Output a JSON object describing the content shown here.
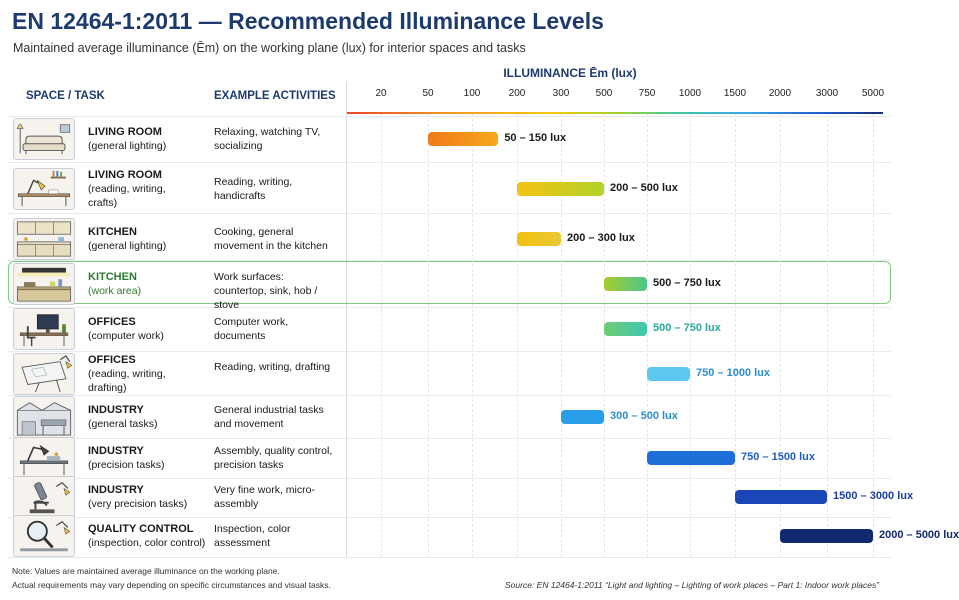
{
  "title": "EN 12464-1:2011 — Recommended Illuminance Levels",
  "subtitle": "Maintained average illuminance (Ēm) on the working plane (lux) for interior spaces and tasks",
  "headers": {
    "space": "SPACE / TASK",
    "activities": "EXAMPLE ACTIVITIES",
    "illuminance": "ILLUMINANCE Ēm (lux)"
  },
  "chart_data": {
    "type": "bar",
    "orientation": "horizontal-range",
    "title": "EN 12464-1:2011 — Recommended Illuminance Levels",
    "xlabel": "ILLUMINANCE Ēm (lux)",
    "x_scale": "log",
    "ticks": [
      20,
      50,
      100,
      200,
      300,
      500,
      750,
      1000,
      1500,
      2000,
      3000,
      5000
    ],
    "tick_labels": [
      "20",
      "50",
      "100",
      "200",
      "300",
      "500",
      "750",
      "1000",
      "1500",
      "2000",
      "3000",
      "5000"
    ],
    "rows": [
      {
        "space": "LIVING ROOM",
        "sub": [
          "(general lighting)"
        ],
        "activities": "Relaxing, watching TV, socializing",
        "min": 50,
        "max": 150,
        "label": "50 – 150 lux",
        "color_start": "#f07a1a",
        "color_end": "#f6a81c",
        "label_color": "#1a1a1a"
      },
      {
        "space": "LIVING ROOM",
        "sub": [
          "(reading, writing,",
          "crafts)"
        ],
        "activities": "Reading, writing, handicrafts",
        "min": 200,
        "max": 500,
        "label": "200 – 500 lux",
        "color_start": "#f4c213",
        "color_end": "#b3d22a",
        "label_color": "#1a1a1a"
      },
      {
        "space": "KITCHEN",
        "sub": [
          "(general lighting)"
        ],
        "activities": "Cooking, general movement in the kitchen",
        "min": 200,
        "max": 300,
        "label": "200 – 300 lux",
        "color_start": "#f2c010",
        "color_end": "#e9c935",
        "label_color": "#1a1a1a"
      },
      {
        "space": "KITCHEN",
        "sub": [
          "(work area)"
        ],
        "activities": "Work surfaces: countertop, sink, hob / stove",
        "min": 500,
        "max": 750,
        "label": "500 – 750 lux",
        "color_start": "#a7cd2c",
        "color_end": "#4ac58e",
        "label_color": "#1a1a1a",
        "highlight": true
      },
      {
        "space": "OFFICES",
        "sub": [
          "(computer work)"
        ],
        "activities": "Computer work, documents",
        "min": 500,
        "max": 750,
        "label": "500 – 750 lux",
        "color_start": "#6fcc72",
        "color_end": "#3fc6b0",
        "label_color": "#2aa6a0"
      },
      {
        "space": "OFFICES",
        "sub": [
          "(reading, writing,",
          "drafting)"
        ],
        "activities": "Reading, writing, drafting",
        "min": 750,
        "max": 1000,
        "label": "750 – 1000 lux",
        "color_start": "#5cc8f0",
        "color_end": "#5cc8f0",
        "label_color": "#2a8fd0"
      },
      {
        "space": "INDUSTRY",
        "sub": [
          "(general tasks)"
        ],
        "activities": "General industrial tasks and movement",
        "min": 300,
        "max": 500,
        "label": "300 – 500 lux",
        "color_start": "#2a9ee8",
        "color_end": "#2a9ee8",
        "label_color": "#2a8fd0"
      },
      {
        "space": "INDUSTRY",
        "sub": [
          "(precision tasks)"
        ],
        "activities": "Assembly, quality control, precision tasks",
        "min": 750,
        "max": 1500,
        "label": "750 – 1500 lux",
        "color_start": "#1f6fd8",
        "color_end": "#1f6fd8",
        "label_color": "#1f5fc0"
      },
      {
        "space": "INDUSTRY",
        "sub": [
          "(very precision tasks)"
        ],
        "activities": "Very fine work, micro-assembly",
        "min": 1500,
        "max": 3000,
        "label": "1500 – 3000 lux",
        "color_start": "#1a47b8",
        "color_end": "#1a47b8",
        "label_color": "#1a3f9e"
      },
      {
        "space": "QUALITY CONTROL",
        "sub": [
          "(inspection, color control)"
        ],
        "activities": "Inspection, color assessment",
        "min": 2000,
        "max": 5000,
        "label": "2000 – 5000 lux",
        "color_start": "#12296e",
        "color_end": "#12296e",
        "label_color": "#12296e"
      }
    ]
  },
  "notes": [
    "Note: Values are maintained average illuminance on the working plane.",
    "Actual requirements may vary depending on specific circumstances and visual tasks."
  ],
  "source": "Source: EN 12464-1:2011 “Light and lighting – Lighting of work places – Part 1: Indoor work places”",
  "icons": [
    "sofa-icon",
    "desk-lamp-icon",
    "kitchen-cabinet-icon",
    "kitchen-counter-icon",
    "computer-desk-icon",
    "drafting-table-icon",
    "factory-icon",
    "workbench-lamp-icon",
    "microscope-icon",
    "magnifier-icon"
  ]
}
